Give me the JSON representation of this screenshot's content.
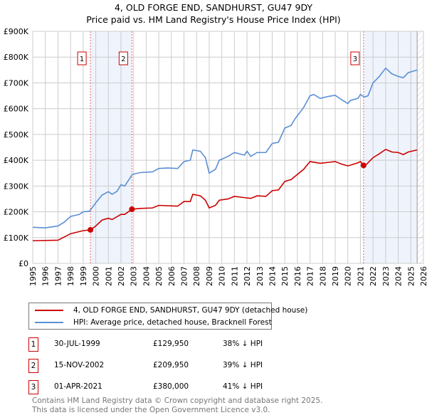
{
  "chart_data": {
    "type": "line",
    "title": "4, OLD FORGE END, SANDHURST, GU47 9DY",
    "subtitle": "Price paid vs. HM Land Registry's House Price Index (HPI)",
    "xlim": [
      1995,
      2026
    ],
    "ylim": [
      0,
      900000
    ],
    "y_ticks": [
      {
        "v": 0,
        "label": "£0"
      },
      {
        "v": 100000,
        "label": "£100K"
      },
      {
        "v": 200000,
        "label": "£200K"
      },
      {
        "v": 300000,
        "label": "£300K"
      },
      {
        "v": 400000,
        "label": "£400K"
      },
      {
        "v": 500000,
        "label": "£500K"
      },
      {
        "v": 600000,
        "label": "£600K"
      },
      {
        "v": 700000,
        "label": "£700K"
      },
      {
        "v": 800000,
        "label": "£800K"
      },
      {
        "v": 900000,
        "label": "£900K"
      }
    ],
    "x_ticks": [
      "1995",
      "1996",
      "1997",
      "1998",
      "1999",
      "2000",
      "2001",
      "2002",
      "2003",
      "2004",
      "2005",
      "2006",
      "2007",
      "2008",
      "2009",
      "2010",
      "2011",
      "2012",
      "2013",
      "2014",
      "2015",
      "2016",
      "2017",
      "2018",
      "2019",
      "2020",
      "2021",
      "2022",
      "2023",
      "2024",
      "2025",
      "2026"
    ],
    "grid": true,
    "data_end": 2025.5,
    "shaded_ranges": [
      [
        1999.58,
        2002.87
      ],
      [
        2021.25,
        2025.5
      ]
    ],
    "series": [
      {
        "name": "4, OLD FORGE END, SANDHURST, GU47 9DY (detached house)",
        "color": "#cc0000",
        "x": [
          1995,
          1997,
          1998,
          1999,
          1999.58,
          2000,
          2000.5,
          2001,
          2001.3,
          2002,
          2002.3,
          2002.87,
          2003.5,
          2004.5,
          2005,
          2006.5,
          2007,
          2007.5,
          2007.7,
          2008.3,
          2008.7,
          2009,
          2009.5,
          2009.8,
          2010.5,
          2011,
          2011.8,
          2012.3,
          2012.8,
          2013.5,
          2014,
          2014.5,
          2015,
          2015.5,
          2016.5,
          2017,
          2017.8,
          2018.5,
          2019,
          2019.5,
          2020,
          2020.8,
          2021,
          2021.25,
          2021.5,
          2022,
          2022.5,
          2023,
          2023.5,
          2024,
          2024.4,
          2024.8,
          2025.5
        ],
        "y": [
          88,
          90,
          115,
          127,
          129.95,
          145,
          168,
          175,
          170,
          190,
          190,
          209.95,
          213,
          215,
          225,
          222,
          240,
          240,
          268,
          262,
          245,
          215,
          225,
          245,
          250,
          260,
          255,
          252,
          262,
          260,
          282,
          285,
          318,
          325,
          365,
          395,
          388,
          392,
          395,
          385,
          378,
          390,
          395,
          380,
          385,
          410,
          425,
          442,
          432,
          430,
          422,
          432,
          440
        ]
      },
      {
        "name": "HPI: Average price, detached house, Bracknell Forest",
        "color": "#5b8fd4",
        "x": [
          1995,
          1996,
          1997,
          1997.5,
          1998,
          1998.7,
          1999,
          1999.5,
          2000,
          2000.5,
          2001,
          2001.3,
          2001.7,
          2002,
          2002.3,
          2002.9,
          2003.5,
          2004.5,
          2005,
          2005.7,
          2006.5,
          2007,
          2007.5,
          2007.7,
          2008.3,
          2008.7,
          2009,
          2009.5,
          2009.8,
          2010.5,
          2011,
          2011.8,
          2012,
          2012.3,
          2012.8,
          2013.5,
          2014,
          2014.5,
          2015,
          2015.5,
          2015.8,
          2016.5,
          2017,
          2017.3,
          2017.8,
          2018.5,
          2019,
          2019.5,
          2020,
          2020.2,
          2020.8,
          2021,
          2021.3,
          2021.6,
          2022,
          2022.5,
          2023,
          2023.5,
          2024,
          2024.4,
          2024.8,
          2025.5
        ],
        "y": [
          140,
          138,
          145,
          160,
          182,
          190,
          200,
          202,
          235,
          265,
          278,
          268,
          280,
          305,
          300,
          345,
          352,
          355,
          368,
          370,
          368,
          395,
          400,
          440,
          435,
          410,
          350,
          365,
          400,
          415,
          430,
          420,
          435,
          415,
          430,
          430,
          465,
          470,
          525,
          535,
          560,
          605,
          650,
          655,
          640,
          648,
          652,
          635,
          620,
          632,
          640,
          655,
          645,
          650,
          700,
          725,
          757,
          735,
          725,
          720,
          740,
          750
        ]
      }
    ],
    "y_unit": "thousands GBP",
    "sales": [
      {
        "id": "1",
        "x": 1999.58,
        "date": "30-JUL-1999",
        "price": "£129,950",
        "value": 129.95,
        "hpi": "38% ↓ HPI"
      },
      {
        "id": "2",
        "x": 2002.87,
        "date": "15-NOV-2002",
        "price": "£209,950",
        "value": 209.95,
        "hpi": "39% ↓ HPI"
      },
      {
        "id": "3",
        "x": 2021.25,
        "date": "01-APR-2021",
        "price": "£380,000",
        "value": 380,
        "hpi": "41% ↓ HPI"
      }
    ],
    "legend_position": "below"
  },
  "footer": {
    "line1": "Contains HM Land Registry data © Crown copyright and database right 2025.",
    "line2": "This data is licensed under the Open Government Licence v3.0."
  }
}
